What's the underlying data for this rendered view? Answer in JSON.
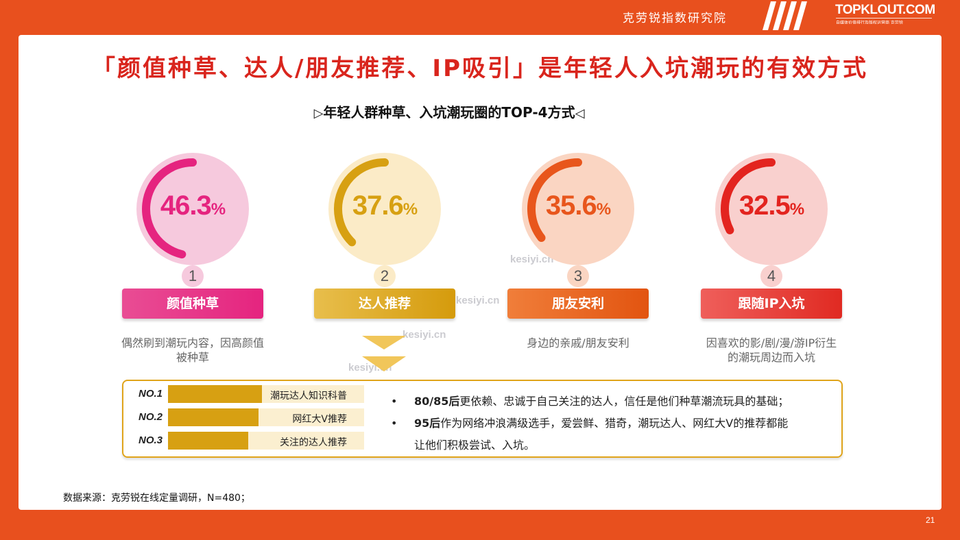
{
  "header": {
    "institute": "克劳锐指数研究院",
    "logo": "TOPKLOUT.COM",
    "logo_sub": "自媒体价值排行及版权运营商 克劳锐"
  },
  "title": "「颜值种草、达人/朋友推荐、IP吸引」是年轻人入坑潮玩的有效方式",
  "subtitle": {
    "left_mark": "▷",
    "text": "年轻人群种草、入坑潮玩圈的TOP-4方式",
    "right_mark": "◁"
  },
  "methods": [
    {
      "rank": "1",
      "value": 46.3,
      "display": "46.3",
      "sign": "%",
      "label": "颜值种草",
      "desc": "偶然刷到潮玩内容，因高颜值被种草",
      "color": "#E5247F",
      "light": "#F6C9DD",
      "btn_from": "#E94D94",
      "btn_to": "#E5247F"
    },
    {
      "rank": "2",
      "value": 37.6,
      "display": "37.6",
      "sign": "%",
      "label": "达人推荐",
      "desc": "",
      "color": "#D7A012",
      "light": "#FBEBC7",
      "btn_from": "#E8BE4C",
      "btn_to": "#D59B0C"
    },
    {
      "rank": "3",
      "value": 35.6,
      "display": "35.6",
      "sign": "%",
      "label": "朋友安利",
      "desc": "身边的亲戚/朋友安利",
      "color": "#E8561C",
      "light": "#FAD5C2",
      "btn_from": "#F07E3A",
      "btn_to": "#E25410"
    },
    {
      "rank": "4",
      "value": 32.5,
      "display": "32.5",
      "sign": "%",
      "label": "跟随IP入坑",
      "desc": "因喜欢的影/剧/漫/游IP衍生的潮玩周边而入坑",
      "color": "#E3241F",
      "light": "#F9D0CE",
      "btn_from": "#EF5F5B",
      "btn_to": "#E02A22"
    }
  ],
  "watermark": "kesiyi.cn",
  "sub_ranking": [
    {
      "rank": "NO.1",
      "label": "潮玩达人知识科普",
      "share": 0.48
    },
    {
      "rank": "NO.2",
      "label": "网红大V推荐",
      "share": 0.46
    },
    {
      "rank": "NO.3",
      "label": "关注的达人推荐",
      "share": 0.41
    }
  ],
  "notes": [
    {
      "bullet": "•",
      "bold": "80/85后",
      "text": "更依赖、忠诚于自己关注的达人，信任是他们种草潮流玩具的基础；",
      "text2": ""
    },
    {
      "bullet": "•",
      "bold": "95后",
      "text": "作为网络冲浪满级选手，爱尝鲜、猎奇，潮玩达人、网红大V的推荐都能",
      "text2": "让他们积极尝试、入坑。"
    }
  ],
  "source": "数据来源：克劳锐在线定量调研，N=480；",
  "page_number": "21"
}
